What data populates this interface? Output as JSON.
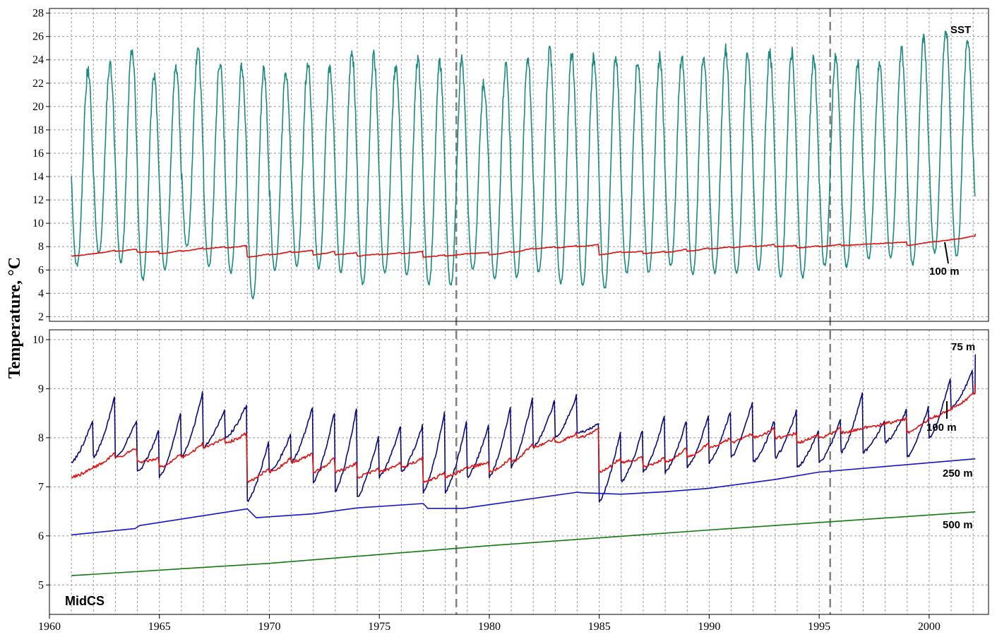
{
  "colors": {
    "sst": "#1a8a80",
    "d75": "#0a0a7a",
    "d100": "#e01010",
    "d250": "#1414c8",
    "d500": "#127a12",
    "event": "#808080"
  },
  "ylabel": "Temperature, °C",
  "site_label": "MidCS",
  "xlim": [
    1960,
    2002.7
  ],
  "x_ticks": [
    "1960",
    "1965",
    "1970",
    "1975",
    "1980",
    "1985",
    "1990",
    "1995",
    "2000"
  ],
  "event_lines": [
    1978.5,
    1995.5
  ],
  "chart_data": [
    {
      "type": "line",
      "panel": "top",
      "ylim": [
        1.6,
        28.4
      ],
      "y_ticks": [
        2,
        4,
        6,
        8,
        10,
        12,
        14,
        16,
        18,
        20,
        22,
        24,
        26,
        28
      ],
      "grid": true,
      "series": [
        {
          "name": "SST",
          "color": "#1a8a80",
          "generator": "seasonal",
          "x": [
            1961.0,
            2002.1
          ],
          "annual_max": [
            23.0,
            23.7,
            25.0,
            22.7,
            23.6,
            24.9,
            23.8,
            23.3,
            23.2,
            23.0,
            23.8,
            23.3,
            24.7,
            24.4,
            23.6,
            24.1,
            23.8,
            24.0,
            22.0,
            23.4,
            24.0,
            24.7,
            24.5,
            24.2,
            24.4,
            24.0,
            24.2,
            24.2,
            24.4,
            24.8,
            24.4,
            24.7,
            24.6,
            24.0,
            24.3,
            23.6,
            23.6,
            24.7,
            25.7,
            26.7,
            25.8,
            25.7
          ],
          "annual_min": [
            6.4,
            7.5,
            6.7,
            5.2,
            6.0,
            8.0,
            6.3,
            5.8,
            3.6,
            6.0,
            6.4,
            6.2,
            5.8,
            4.8,
            5.7,
            5.6,
            4.8,
            4.7,
            6.0,
            5.3,
            5.4,
            5.8,
            4.9,
            4.7,
            4.4,
            5.8,
            5.7,
            6.4,
            5.7,
            5.8,
            5.7,
            6.0,
            5.4,
            5.4,
            6.4,
            6.3,
            7.0,
            7.1,
            6.5,
            7.5,
            7.2,
            8.7
          ]
        },
        {
          "name": "100 m",
          "color": "#e01010",
          "generator": "sawtooth",
          "x": [
            1961.0,
            2002.1
          ],
          "annual_start": [
            7.2,
            7.4,
            7.6,
            7.5,
            7.4,
            7.6,
            7.8,
            7.9,
            7.1,
            7.3,
            7.5,
            7.3,
            7.3,
            7.2,
            7.3,
            7.4,
            7.1,
            7.2,
            7.4,
            7.3,
            7.5,
            7.8,
            7.9,
            8.0,
            7.3,
            7.5,
            7.4,
            7.5,
            7.6,
            7.8,
            7.9,
            8.0,
            8.0,
            7.9,
            8.0,
            8.1,
            8.2,
            8.3,
            8.1,
            8.4,
            8.6,
            8.9
          ],
          "annual_end": [
            7.4,
            7.7,
            7.8,
            7.6,
            7.7,
            7.9,
            8.0,
            8.1,
            7.4,
            7.6,
            7.7,
            7.6,
            7.5,
            7.4,
            7.5,
            7.6,
            7.3,
            7.4,
            7.5,
            7.6,
            7.9,
            8.0,
            8.1,
            8.2,
            7.6,
            7.6,
            7.6,
            7.8,
            7.9,
            8.0,
            8.1,
            8.2,
            8.1,
            8.1,
            8.2,
            8.2,
            8.3,
            8.4,
            8.4,
            8.6,
            8.9,
            9.1
          ]
        }
      ]
    },
    {
      "type": "line",
      "panel": "bottom",
      "ylim": [
        4.4,
        10.2
      ],
      "y_ticks": [
        5,
        6,
        7,
        8,
        9,
        10
      ],
      "grid": true,
      "series": [
        {
          "name": "75 m",
          "color": "#0a0a7a",
          "generator": "sawtooth",
          "x": [
            1961.0,
            2002.1
          ],
          "annual_start": [
            7.5,
            7.6,
            7.6,
            7.3,
            7.2,
            7.6,
            7.8,
            8.0,
            6.7,
            7.3,
            7.5,
            7.1,
            6.9,
            6.8,
            7.2,
            7.3,
            6.9,
            6.9,
            7.2,
            7.2,
            7.4,
            7.8,
            8.0,
            8.1,
            6.7,
            7.1,
            7.3,
            7.3,
            7.4,
            7.5,
            7.6,
            7.5,
            7.6,
            7.4,
            7.5,
            7.7,
            7.7,
            7.9,
            7.6,
            8.0,
            8.6,
            8.9
          ],
          "annual_end": [
            8.4,
            8.9,
            8.4,
            8.2,
            8.6,
            9.0,
            8.6,
            8.7,
            8.0,
            8.1,
            8.7,
            8.6,
            8.7,
            8.1,
            8.3,
            8.3,
            8.6,
            8.4,
            8.3,
            8.7,
            8.9,
            8.8,
            8.9,
            8.3,
            8.2,
            8.2,
            8.5,
            8.4,
            8.5,
            8.6,
            8.8,
            8.4,
            8.6,
            8.2,
            8.4,
            9.0,
            8.4,
            8.6,
            8.7,
            9.3,
            9.4,
            9.7
          ]
        },
        {
          "name": "100 m",
          "color": "#e01010",
          "generator": "sawtooth",
          "x": [
            1961.0,
            2002.1
          ],
          "annual_start": [
            7.2,
            7.4,
            7.6,
            7.5,
            7.4,
            7.6,
            7.8,
            7.9,
            7.1,
            7.3,
            7.5,
            7.3,
            7.3,
            7.2,
            7.3,
            7.4,
            7.1,
            7.2,
            7.4,
            7.3,
            7.5,
            7.8,
            7.9,
            8.0,
            7.3,
            7.5,
            7.4,
            7.5,
            7.6,
            7.8,
            7.9,
            8.0,
            8.0,
            7.9,
            8.0,
            8.1,
            8.2,
            8.3,
            8.1,
            8.4,
            8.6,
            8.9
          ],
          "annual_end": [
            7.4,
            7.7,
            7.8,
            7.6,
            7.7,
            7.9,
            8.0,
            8.1,
            7.4,
            7.6,
            7.7,
            7.6,
            7.5,
            7.4,
            7.5,
            7.6,
            7.3,
            7.4,
            7.5,
            7.6,
            7.9,
            8.0,
            8.1,
            8.2,
            7.6,
            7.6,
            7.6,
            7.8,
            7.9,
            8.0,
            8.1,
            8.2,
            8.1,
            8.1,
            8.2,
            8.2,
            8.3,
            8.4,
            8.4,
            8.6,
            8.9,
            9.1
          ]
        },
        {
          "name": "250 m",
          "color": "#1414c8",
          "generator": "polyline",
          "x": [
            1961.0,
            1963.9,
            1964.1,
            1969.0,
            1969.4,
            1972.0,
            1974.0,
            1977.0,
            1977.2,
            1978.8,
            1984.0,
            1984.2,
            1986.0,
            1988.0,
            1990.0,
            1993.0,
            1995.0,
            2002.1
          ],
          "y": [
            6.02,
            6.15,
            6.21,
            6.55,
            6.37,
            6.45,
            6.57,
            6.66,
            6.56,
            6.56,
            6.89,
            6.88,
            6.85,
            6.9,
            6.97,
            7.15,
            7.3,
            7.57
          ]
        },
        {
          "name": "500 m",
          "color": "#127a12",
          "generator": "polyline",
          "x": [
            1961.0,
            1970.0,
            1980.0,
            1990.0,
            2002.1
          ],
          "y": [
            5.19,
            5.44,
            5.8,
            6.12,
            6.49
          ]
        }
      ]
    }
  ]
}
